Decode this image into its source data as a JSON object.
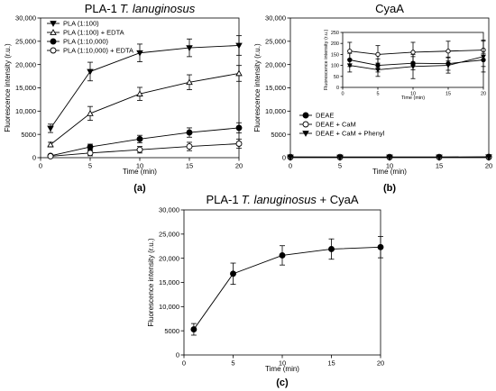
{
  "chart_data": [
    {
      "panel": "(a)",
      "type": "line",
      "title": "PLA-1",
      "title_italic": "T. lanuginosus",
      "xlabel": "Time (min)",
      "ylabel": "Fluorescence intensity (r.u.)",
      "xlim": [
        0,
        20
      ],
      "ylim": [
        0,
        30000
      ],
      "xticks": [
        0,
        5,
        10,
        15,
        20
      ],
      "yticks": [
        0,
        5000,
        10000,
        15000,
        20000,
        25000,
        30000
      ],
      "ytick_labels": [
        "0",
        "5000",
        "10,000",
        "15,000",
        "20,000",
        "25,000",
        "30,000"
      ],
      "grid": false,
      "legend_position": "top-left",
      "series": [
        {
          "name": "PLA (1:100)",
          "marker": "triangle-down-filled",
          "x": [
            1,
            5,
            10,
            15,
            20
          ],
          "y": [
            6300,
            18500,
            22500,
            23600,
            24100
          ],
          "err": [
            900,
            2000,
            1900,
            1900,
            2100
          ]
        },
        {
          "name": "PLA (1:100) + EDTA",
          "marker": "triangle-up-open",
          "x": [
            1,
            5,
            10,
            15,
            20
          ],
          "y": [
            2800,
            9500,
            13700,
            16200,
            18100
          ],
          "err": [
            500,
            1500,
            1400,
            1600,
            1700
          ]
        },
        {
          "name": "PLA (1:10,000)",
          "marker": "circle-filled",
          "x": [
            1,
            5,
            10,
            15,
            20
          ],
          "y": [
            400,
            2300,
            4000,
            5400,
            6400
          ],
          "err": [
            200,
            600,
            800,
            1000,
            1100
          ]
        },
        {
          "name": "PLA (1:10,000) + EDTA",
          "marker": "circle-open",
          "x": [
            1,
            5,
            10,
            15,
            20
          ],
          "y": [
            300,
            1000,
            1700,
            2400,
            3000
          ],
          "err": [
            200,
            600,
            700,
            900,
            1000
          ]
        }
      ]
    },
    {
      "panel": "(b)",
      "type": "line",
      "title": "CyaA",
      "xlabel": "Time (min)",
      "ylabel": "Fluorescence intensity (r.u.)",
      "xlim": [
        0,
        20
      ],
      "ylim": [
        0,
        30000
      ],
      "xticks": [
        0,
        5,
        10,
        15,
        20
      ],
      "yticks": [
        0,
        5000,
        10000,
        15000,
        20000,
        25000,
        30000
      ],
      "ytick_labels": [
        "0",
        "5000",
        "10,000",
        "15,000",
        "20,000",
        "25,000",
        "30,000"
      ],
      "grid": false,
      "legend_position": "bottom-left",
      "series": [
        {
          "name": "DEAE",
          "marker": "circle-filled",
          "x": [
            0,
            5,
            10,
            15,
            20
          ],
          "y": [
            120,
            110,
            110,
            110,
            120
          ]
        },
        {
          "name": "DEAE + CaM",
          "marker": "circle-open",
          "x": [
            0,
            5,
            10,
            15,
            20
          ],
          "y": [
            160,
            150,
            160,
            165,
            170
          ]
        },
        {
          "name": "DEAE + CaM + Phenyl",
          "marker": "triangle-down-filled",
          "x": [
            0,
            5,
            10,
            15,
            20
          ],
          "y": [
            100,
            80,
            95,
            100,
            140
          ]
        }
      ],
      "inset": {
        "xlabel": "Time (min)",
        "ylabel": "Fluorescence intensity (r.u.)",
        "xlim": [
          0,
          20
        ],
        "ylim": [
          0,
          250
        ],
        "xticks": [
          0,
          5,
          10,
          15,
          20
        ],
        "yticks": [
          0,
          50,
          100,
          150,
          200,
          250
        ],
        "series": [
          {
            "name": "DEAE + CaM",
            "marker": "circle-open",
            "x": [
              1,
              5,
              10,
              15,
              20
            ],
            "y": [
              165,
              150,
              160,
              165,
              170
            ],
            "err": [
              40,
              40,
              45,
              45,
              45
            ]
          },
          {
            "name": "DEAE",
            "marker": "circle-filled",
            "x": [
              1,
              5,
              10,
              15,
              20
            ],
            "y": [
              125,
              100,
              110,
              108,
              125
            ],
            "err": [
              30,
              30,
              30,
              30,
              30
            ]
          },
          {
            "name": "DEAE + CaM + Phenyl",
            "marker": "triangle-down-filled",
            "x": [
              1,
              5,
              10,
              15,
              20
            ],
            "y": [
              100,
              80,
              95,
              100,
              140
            ],
            "err": [
              30,
              30,
              55,
              35,
              70
            ]
          }
        ]
      }
    },
    {
      "panel": "(c)",
      "type": "line",
      "title": "PLA-1",
      "title_italic": "T. lanuginosus",
      "title_suffix": " + CyaA",
      "xlabel": "Time (min)",
      "ylabel": "Fluorescence intensity (r.u.)",
      "xlim": [
        0,
        20
      ],
      "ylim": [
        0,
        30000
      ],
      "xticks": [
        0,
        5,
        10,
        15,
        20
      ],
      "yticks": [
        0,
        5000,
        10000,
        15000,
        20000,
        25000,
        30000
      ],
      "ytick_labels": [
        "0",
        "5000",
        "10,000",
        "15,000",
        "20,000",
        "25,000",
        "30,000"
      ],
      "grid": false,
      "series": [
        {
          "name": "",
          "marker": "circle-filled",
          "x": [
            1,
            5,
            10,
            15,
            20
          ],
          "y": [
            5300,
            16800,
            20600,
            21900,
            22300
          ],
          "err": [
            1200,
            2200,
            2000,
            2100,
            2200
          ]
        }
      ]
    }
  ]
}
